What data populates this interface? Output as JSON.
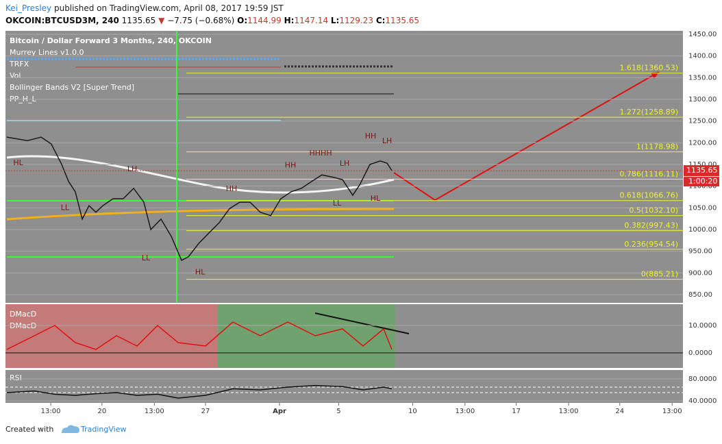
{
  "header": {
    "user": "Kei_Presley",
    "published": "published on TradingView.com, April 08, 2017 19:59 JST",
    "symbol": "OKCOIN:BTCUSD3M, 240",
    "last": 1135.65,
    "change": "−7.75 (−0.68%)",
    "o_label": "O:",
    "o": 1144.99,
    "h_label": "H:",
    "h": 1147.14,
    "l_label": "L:",
    "l": 1129.23,
    "c_label": "C:",
    "c": 1135.65
  },
  "chart_data": [
    {
      "type": "line",
      "title": "Bitcoin / Dollar Forward 3 Months, 240, OKCOIN",
      "indicators": [
        "Murrey Lines v1.0.0",
        "TRFX",
        "Vol",
        "Bollinger Bands V2 [Super Trend]",
        "PP_H_L"
      ],
      "x": [
        12.57,
        13.96,
        14.89,
        15.58,
        16.28,
        16.74,
        17.2,
        17.67,
        18.13,
        18.59,
        19.06,
        19.75,
        20.44,
        21.14,
        21.83,
        22.3,
        22.99,
        23.69,
        24.38,
        24.84,
        25.54,
        26.23,
        26.93,
        27.62,
        28.31,
        29.01,
        29.7,
        30.4,
        31.09,
        31.79,
        32.48,
        33.18,
        33.87,
        34.56,
        35.26,
        35.95,
        36.42,
        37.11,
        37.81,
        38.27,
        38.59
      ],
      "values": [
        1213,
        1205,
        1213,
        1197,
        1150,
        1111,
        1087,
        1024,
        1055,
        1040,
        1055,
        1071,
        1071,
        1095,
        1063,
        1000,
        1024,
        984,
        929,
        937,
        968,
        992,
        1016,
        1048,
        1063,
        1063,
        1040,
        1032,
        1071,
        1087,
        1095,
        1111,
        1126,
        1121,
        1115,
        1079,
        1103,
        1150,
        1158,
        1153,
        1136
      ],
      "color": "#1a1a1a",
      "xlim": [
        12.48,
        58.27
      ],
      "ylim": [
        831,
        1458
      ],
      "yticks": [
        {
          "value": 1450,
          "label": "1450.00"
        },
        {
          "value": 1400,
          "label": "1400.00"
        },
        {
          "value": 1350,
          "label": "1350.00"
        },
        {
          "value": 1300,
          "label": "1300.00"
        },
        {
          "value": 1250,
          "label": "1250.00"
        },
        {
          "value": 1200,
          "label": "1200.00"
        },
        {
          "value": 1150,
          "label": "1150.00"
        },
        {
          "value": 1100,
          "label": "1100.00"
        },
        {
          "value": 1050,
          "label": "1050.00"
        },
        {
          "value": 1000,
          "label": "1000.00"
        },
        {
          "value": 950,
          "label": "950.00"
        },
        {
          "value": 900,
          "label": "900.00"
        },
        {
          "value": 850,
          "label": "850.00"
        }
      ],
      "grid": true,
      "fib_levels": {
        "values": [
          1360.53,
          1258.89,
          1178.98,
          1116.11,
          1066.76,
          1032.1,
          997.43,
          954.54,
          885.21
        ],
        "value_labels": [
          "1.618(1360.53)",
          "1.272(1258.89)",
          "1(1178.98)",
          "0.786(1116.11)",
          "0.618(1066.76)",
          "0.5(1032.10)",
          "0.382(997.43)",
          "0.236(954.54)",
          "0(885.21)"
        ],
        "color": "#f2f230"
      },
      "last_price": 1135.65,
      "countdown": "1:00:20",
      "annotations": [
        {
          "text": "HL",
          "x": 13.34,
          "y": 1153
        },
        {
          "text": "LH",
          "x": 21.05,
          "y": 1139
        },
        {
          "text": "LL",
          "x": 16.5,
          "y": 1050
        },
        {
          "text": "LL",
          "x": 21.97,
          "y": 934
        },
        {
          "text": "HL",
          "x": 25.63,
          "y": 901
        },
        {
          "text": "HH",
          "x": 27.76,
          "y": 1093
        },
        {
          "text": "HH",
          "x": 31.74,
          "y": 1148
        },
        {
          "text": "HHHH",
          "x": 33.78,
          "y": 1175
        },
        {
          "text": "LH",
          "x": 35.4,
          "y": 1152
        },
        {
          "text": "LL",
          "x": 34.89,
          "y": 1060
        },
        {
          "text": "HL",
          "x": 37.48,
          "y": 1071
        },
        {
          "text": "HH",
          "x": 37.16,
          "y": 1215
        },
        {
          "text": "LH",
          "x": 38.27,
          "y": 1204
        }
      ]
    },
    {
      "type": "line",
      "titles": [
        "DMacD",
        "DMacD"
      ],
      "x": [
        12.57,
        14.43,
        15.81,
        17.2,
        18.59,
        19.98,
        21.37,
        22.76,
        24.15,
        26,
        27.85,
        29.7,
        31.56,
        33.41,
        35.26,
        36.65,
        38.04,
        38.59
      ],
      "values": [
        1.25,
        6.25,
        10,
        3.75,
        1.25,
        6.25,
        2.5,
        10,
        3.75,
        2.5,
        11.25,
        6.25,
        11.25,
        6.25,
        8.75,
        2.5,
        8.75,
        1.25
      ],
      "color": "#e01010",
      "xlim": [
        12.48,
        58.27
      ],
      "ylim": [
        -5.5,
        17.75
      ],
      "yticks": [
        {
          "value": 10,
          "label": "10.0000"
        },
        {
          "value": 0,
          "label": "0.0000"
        }
      ],
      "grid": true
    },
    {
      "type": "line",
      "title": "RSI",
      "x": [
        12.57,
        14.43,
        15.81,
        17.2,
        18.59,
        19.98,
        21.37,
        22.76,
        24.15,
        26,
        27.85,
        29.7,
        31.56,
        33.41,
        35.26,
        36.65,
        38.04,
        38.59
      ],
      "values": [
        55,
        58,
        52,
        50,
        53,
        55,
        50,
        52,
        45,
        50,
        62,
        60,
        65,
        68,
        66,
        60,
        65,
        62
      ],
      "color": "#111111",
      "xlim": [
        12.48,
        58.27
      ],
      "ylim": [
        36.25,
        96.25
      ],
      "yticks": [
        {
          "value": 80,
          "label": "80.0000"
        },
        {
          "value": 40,
          "label": "40.0000"
        }
      ],
      "grid": true,
      "xticks": [
        {
          "value": 15.54,
          "label": "13:00"
        },
        {
          "value": 19,
          "label": "20"
        },
        {
          "value": 22.54,
          "label": "13:00"
        },
        {
          "value": 26,
          "label": "27"
        },
        {
          "value": 31,
          "label": "Apr"
        },
        {
          "value": 35,
          "label": "5"
        },
        {
          "value": 40,
          "label": "10"
        },
        {
          "value": 43.54,
          "label": "13:00"
        },
        {
          "value": 47,
          "label": "17"
        },
        {
          "value": 50.54,
          "label": "13:00"
        },
        {
          "value": 54,
          "label": "24"
        },
        {
          "value": 57.54,
          "label": "13:00"
        }
      ]
    }
  ],
  "footer": {
    "created": "Created with",
    "brand": "TradingView"
  }
}
